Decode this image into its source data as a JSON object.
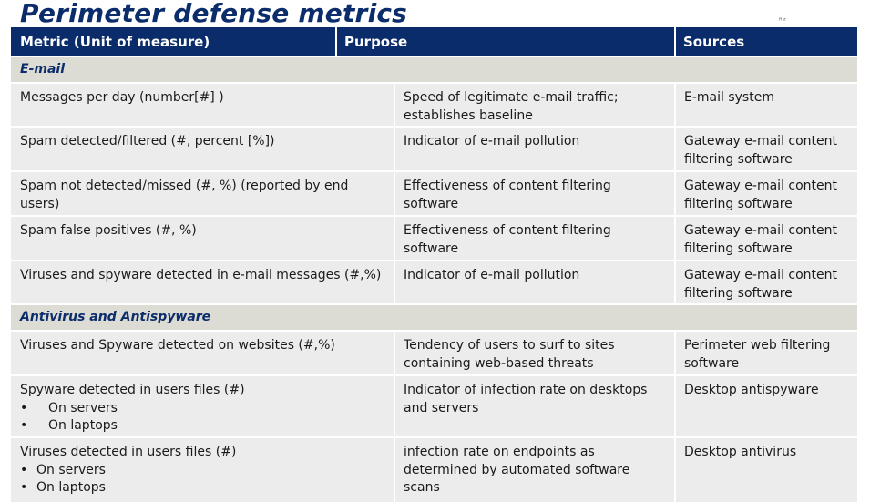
{
  "title": "Perimeter defense metrics",
  "corner_mark": "ᴿᴵᶻ",
  "header": {
    "col1": "Metric (Unit of measure)",
    "col2": "Purpose",
    "col3": "Sources"
  },
  "sections": [
    {
      "name": "E-mail",
      "rows": [
        {
          "metric": "Messages per day (number[#] )",
          "purpose": "Speed of legitimate e-mail traffic; establishes baseline",
          "source": "E-mail system"
        },
        {
          "metric": "Spam detected/filtered (#, percent [%])",
          "purpose": "Indicator of e-mail pollution",
          "source": "Gateway  e-mail content filtering software"
        },
        {
          "metric": "Spam not detected/missed (#, %) (reported by end users)",
          "purpose": "Effectiveness of content filtering software",
          "source": "Gateway  e-mail content filtering software"
        },
        {
          "metric": "Spam false positives (#, %)",
          "purpose": "Effectiveness of content filtering software",
          "source": "Gateway  e-mail content filtering software"
        },
        {
          "metric": "Viruses and spyware detected in e-mail messages (#,%)",
          "purpose": "Indicator of e-mail pollution",
          "source": "Gateway  e-mail content filtering software"
        }
      ]
    },
    {
      "name": "Antivirus and Antispyware",
      "rows": [
        {
          "metric": "Viruses and Spyware detected on websites (#,%)",
          "purpose": "Tendency of users to surf to sites containing web-based threats",
          "source": "Perimeter web filtering software"
        },
        {
          "metric": "Spyware detected in users files (#)",
          "bullets": [
            "On servers",
            "On laptops"
          ],
          "purpose": "Indicator of infection rate on desktops and servers",
          "source": "Desktop antispyware"
        },
        {
          "metric": "Viruses detected in users files (#)",
          "bullets": [
            "On servers",
            "On laptops"
          ],
          "purpose": "infection rate on endpoints as determined by automated software scans",
          "source": "Desktop antivirus"
        }
      ]
    }
  ]
}
